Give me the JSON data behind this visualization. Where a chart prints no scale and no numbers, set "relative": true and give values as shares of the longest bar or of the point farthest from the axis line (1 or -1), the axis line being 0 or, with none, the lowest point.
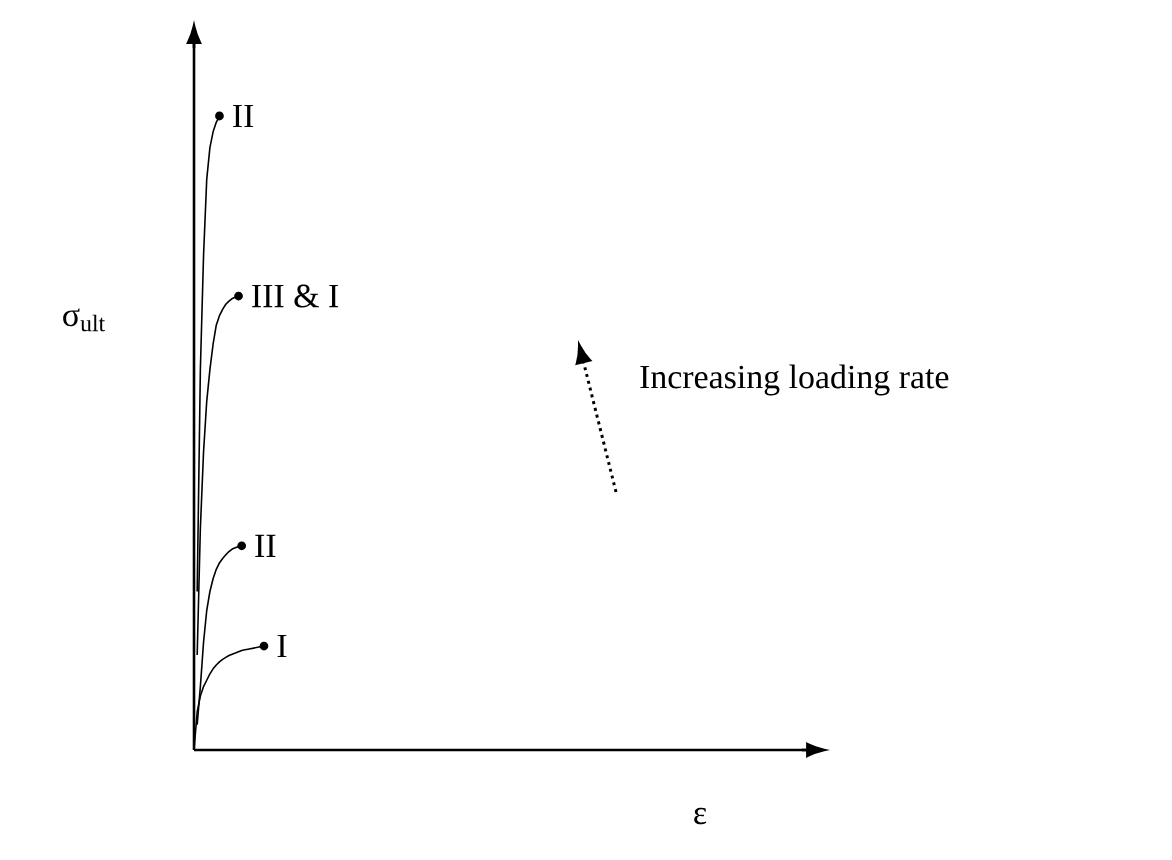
{
  "chart_data": {
    "type": "line",
    "relative": true,
    "ylabel": "σ$_{ult}$",
    "annotations": [
      "Increasing loading rate",
      "ε"
    ],
    "legend": false,
    "line_style": "solid",
    "categories": [
      null,
      null,
      null,
      null,
      null,
      null,
      null,
      null,
      null,
      null,
      null,
      null,
      null,
      null,
      null,
      null,
      null,
      null,
      null,
      null,
      null,
      null,
      null
    ],
    "series": [
      {
        "name": "I",
        "color": "#000000",
        "values": [
          0,
          0.06,
          0.085,
          0.1,
          0.11,
          0.12,
          0.128,
          0.134,
          0.139,
          0.143,
          0.146,
          0.149,
          0.151,
          0.153,
          0.155,
          0.157,
          0.158,
          0.159,
          0.16,
          0.161,
          0.162,
          0.163,
          0.164
        ]
      },
      {
        "name": "II",
        "color": "#000000",
        "values": [
          null,
          0.04,
          0.1,
          0.17,
          0.22,
          0.25,
          0.27,
          0.285,
          0.295,
          0.302,
          0.308,
          0.313,
          0.317,
          0.319,
          0.321,
          0.322,
          null,
          null,
          null,
          null,
          null,
          null,
          null
        ]
      },
      {
        "name": "III & I",
        "color": "#000000",
        "values": [
          null,
          0.15,
          0.35,
          0.47,
          0.55,
          0.6,
          0.64,
          0.67,
          0.685,
          0.695,
          0.703,
          0.708,
          0.712,
          0.714,
          0.716,
          null,
          null,
          null,
          null,
          null,
          null,
          null,
          null
        ]
      },
      {
        "name": "II",
        "color": "#000000",
        "values": [
          null,
          0.25,
          0.6,
          0.78,
          0.9,
          0.95,
          0.975,
          0.99,
          1,
          null,
          null,
          null,
          null,
          null,
          null,
          null,
          null,
          null,
          null,
          null,
          null,
          null,
          null
        ]
      }
    ]
  }
}
